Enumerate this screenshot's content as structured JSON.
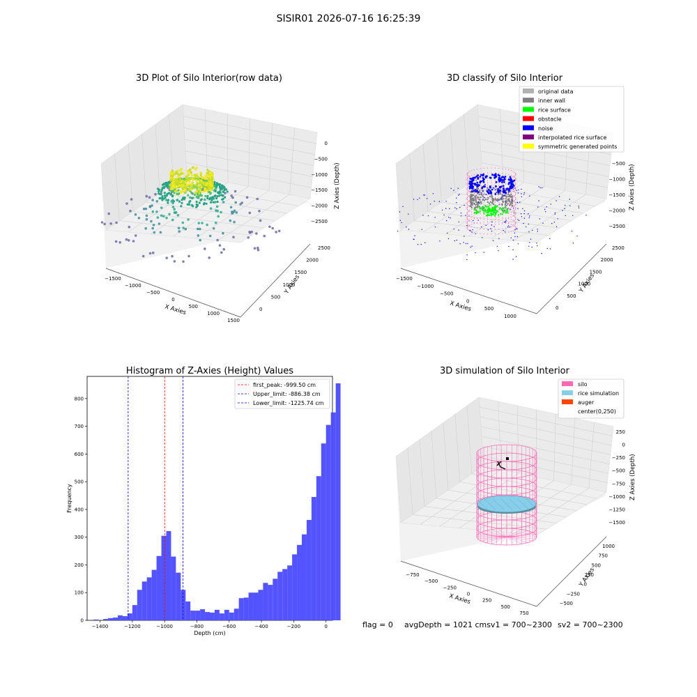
{
  "suptitle": "SISIR01 2026-07-16 16:25:39",
  "status_line": {
    "flag": "flag = 0",
    "avg": "avgDepth = 1021 cmsv1 = 700~2300",
    "sv2": "sv2 = 700~2300"
  },
  "colors": {
    "grey": "#b2b2b2",
    "inner_wall": "#808080",
    "rice_surface": "#00ff00",
    "obstacle": "#ff0000",
    "noise": "#0000ff",
    "interp": "#800080",
    "symmetric": "#ffff00",
    "silo": "#ff69b4",
    "rice_sim": "#87ceeb",
    "auger": "#ff4500",
    "hist": "#4b4bff"
  },
  "chart_data": [
    {
      "type": "scatter",
      "projection": "3d",
      "title": "3D Plot of Silo Interior(row data)",
      "xlabel": "X Axies",
      "ylabel": "Y Axies",
      "zlabel": "Z Axies (Depth)",
      "xticks": [
        "−1500",
        "−1000",
        "−500",
        "0",
        "500",
        "1000",
        "1500"
      ],
      "yticks": [
        "0",
        "500",
        "1000",
        "1500",
        "2000",
        "2500"
      ],
      "zticks": [
        "0",
        "−500",
        "−1000",
        "−1500",
        "−2000",
        "−2500"
      ],
      "colormap": "viridis"
    },
    {
      "type": "scatter",
      "projection": "3d",
      "title": "3D classify of Silo Interior",
      "xlabel": "X Axies",
      "ylabel": "Y Axies",
      "zlabel": "Z Axies (Depth)",
      "xticks": [
        "−1500",
        "−1000",
        "−500",
        "0",
        "500",
        "1000"
      ],
      "yticks": [
        "0",
        "500",
        "1000",
        "1500",
        "2000",
        "2500"
      ],
      "zticks": [
        "−500",
        "−1000",
        "−1500",
        "−2000",
        "−2500"
      ],
      "legend": [
        {
          "label": "original data",
          "color": "#b2b2b2"
        },
        {
          "label": "inner wall",
          "color": "#808080"
        },
        {
          "label": "rice surface",
          "color": "#00ff00"
        },
        {
          "label": "obstacle",
          "color": "#ff0000"
        },
        {
          "label": "noise",
          "color": "#0000ff"
        },
        {
          "label": "interpolated rice surface",
          "color": "#800080"
        },
        {
          "label": "symmetric generated points",
          "color": "#ffff00"
        }
      ],
      "legend_position": "top-right"
    },
    {
      "type": "bar",
      "subtype": "histogram",
      "title": "Histogram of Z-Axies (Height) Values",
      "xlabel": "Depth (cm)",
      "ylabel": "Frequency",
      "xlim": [
        -1480,
        40
      ],
      "ylim": [
        0,
        880
      ],
      "xticks": [
        -1400,
        -1200,
        -1000,
        -800,
        -600,
        -400,
        -200,
        0
      ],
      "yticks": [
        0,
        100,
        200,
        300,
        400,
        500,
        600,
        700,
        800
      ],
      "bin_width": 30,
      "bin_start": -1440,
      "values": [
        3,
        0,
        5,
        8,
        10,
        18,
        15,
        25,
        55,
        110,
        140,
        155,
        182,
        232,
        305,
        322,
        230,
        172,
        110,
        68,
        35,
        35,
        40,
        30,
        28,
        38,
        25,
        38,
        28,
        42,
        80,
        82,
        100,
        100,
        110,
        135,
        128,
        150,
        175,
        185,
        198,
        238,
        272,
        310,
        362,
        445,
        520,
        638,
        705,
        750,
        855
      ],
      "vlines": [
        {
          "label": "first_peak: -999.50 cm",
          "x": -999.5,
          "color": "#ff0000"
        },
        {
          "label": "Upper_limit: -886.38 cm",
          "x": -886.38,
          "color": "#0000ff"
        },
        {
          "label": "Lower_limit: -1225.74 cm",
          "x": -1225.74,
          "color": "#0000ff"
        }
      ],
      "legend_position": "top-right"
    },
    {
      "type": "scatter",
      "projection": "3d",
      "title": "3D simulation of Silo Interior",
      "xlabel": "X Axies",
      "ylabel": "Y Axies",
      "zlabel": "Z Axies (Depth)",
      "xticks": [
        "−750",
        "−500",
        "−250",
        "0",
        "250",
        "500",
        "750"
      ],
      "yticks": [
        "−500",
        "−250",
        "0",
        "250",
        "500",
        "750",
        "1000"
      ],
      "zticks": [
        "250",
        "0",
        "−250",
        "−500",
        "−750",
        "−1000",
        "−1250",
        "−1500"
      ],
      "legend": [
        {
          "label": "silo",
          "color": "#ff69b4"
        },
        {
          "label": "rice simulation",
          "color": "#87ceeb"
        },
        {
          "label": "auger",
          "color": "#ff4500"
        },
        {
          "label": "center(0,250)",
          "color": "#ffffff"
        }
      ],
      "legend_position": "top-right"
    }
  ]
}
